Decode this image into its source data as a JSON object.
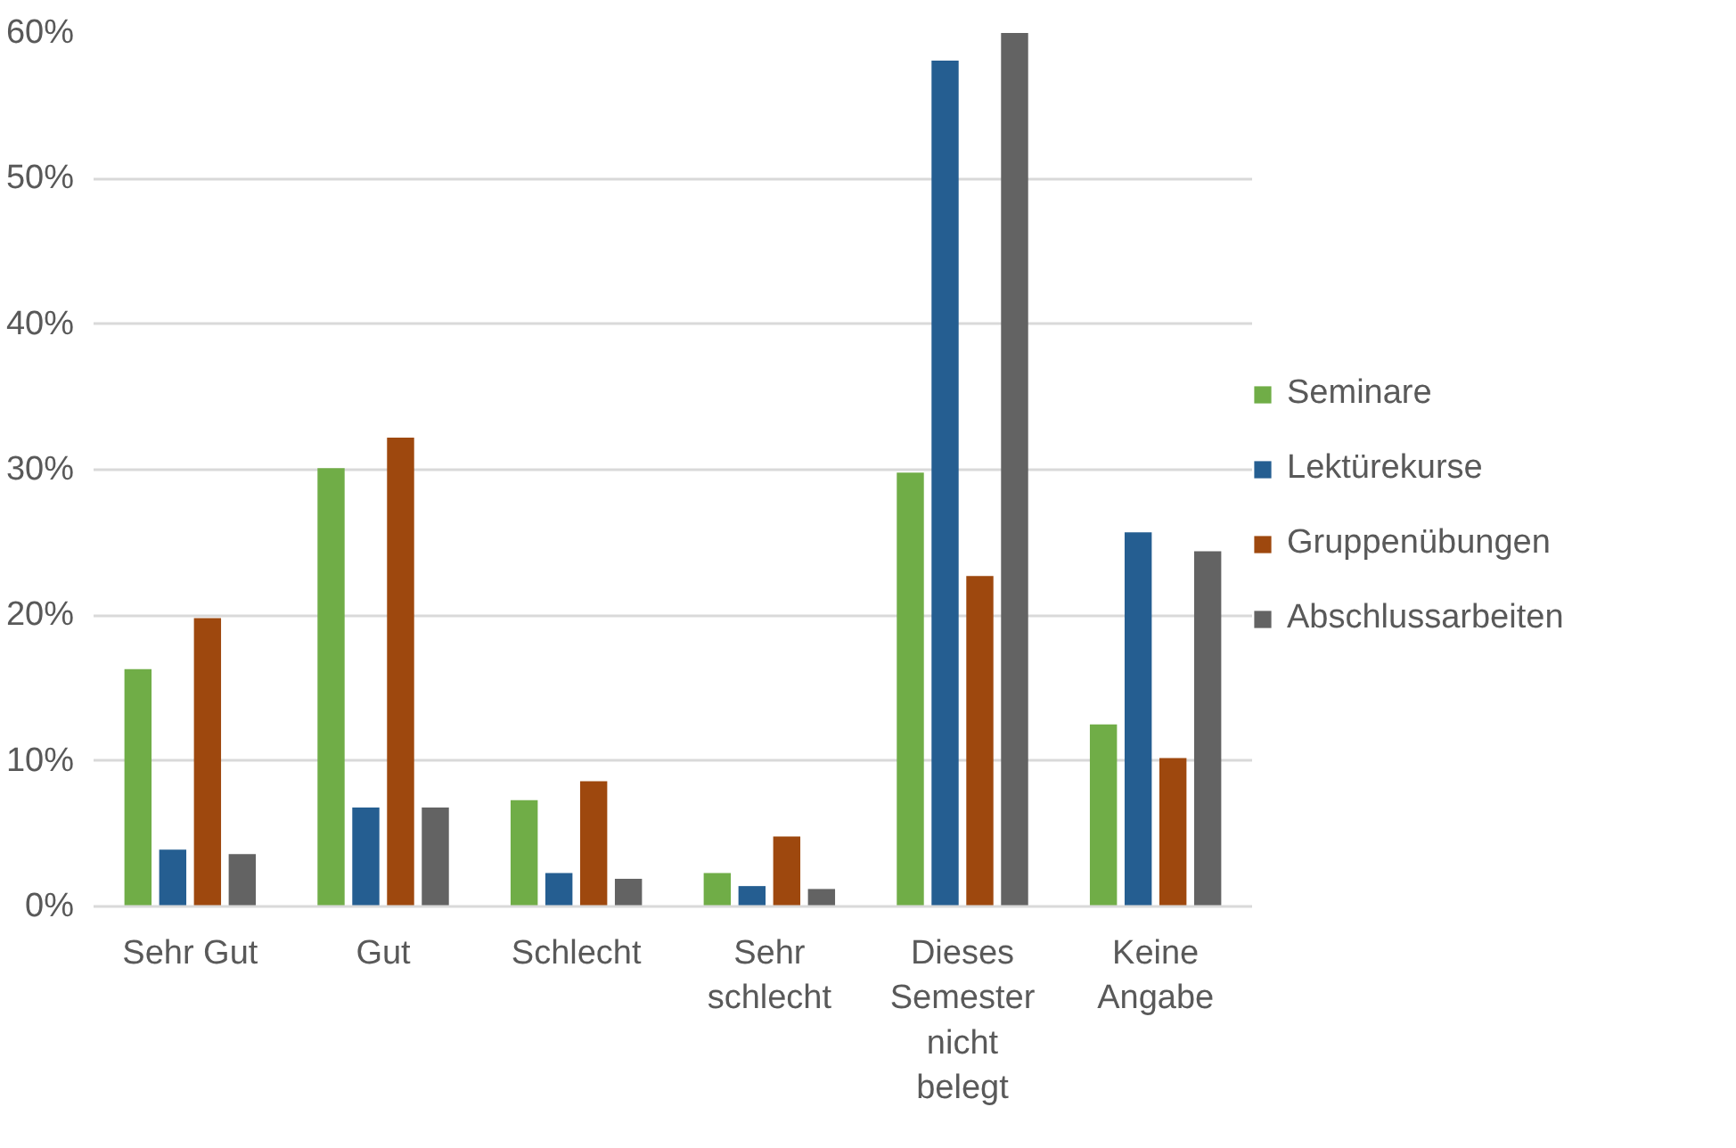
{
  "chart_data": {
    "type": "bar",
    "categories": [
      "Sehr Gut",
      "Gut",
      "Schlecht",
      "Sehr schlecht",
      "Dieses Semester nicht belegt",
      "Keine Angabe"
    ],
    "series": [
      {
        "name": "Seminare",
        "color": "#70ad47",
        "values": [
          16.3,
          30.1,
          7.3,
          2.3,
          29.8,
          12.5
        ]
      },
      {
        "name": "Lektürekurse",
        "color": "#255e91",
        "values": [
          3.9,
          6.8,
          2.3,
          1.4,
          58.1,
          25.7
        ]
      },
      {
        "name": "Gruppenübungen",
        "color": "#9e480e",
        "values": [
          19.8,
          32.2,
          8.6,
          4.8,
          22.7,
          10.2
        ]
      },
      {
        "name": "Abschlussarbeiten",
        "color": "#636363",
        "values": [
          3.6,
          6.8,
          1.9,
          1.2,
          60,
          24.4
        ]
      }
    ],
    "ylim": [
      0,
      60
    ],
    "yticks": [
      {
        "value": 0,
        "label": "0%"
      },
      {
        "value": 10,
        "label": "10%"
      },
      {
        "value": 20,
        "label": "20%"
      },
      {
        "value": 30,
        "label": "30%"
      },
      {
        "value": 40,
        "label": "40%"
      },
      {
        "value": 50,
        "label": "50%"
      },
      {
        "value": 60,
        "label": "60%"
      }
    ],
    "grid": "y",
    "legend": "right"
  }
}
